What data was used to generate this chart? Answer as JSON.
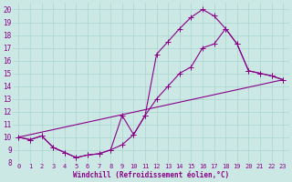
{
  "background_color": "#cce8e4",
  "line_color": "#880088",
  "xlabel": "Windchill (Refroidissement éolien,°C)",
  "xlim": [
    -0.5,
    23.5
  ],
  "ylim": [
    8,
    20.5
  ],
  "xticks": [
    0,
    1,
    2,
    3,
    4,
    5,
    6,
    7,
    8,
    9,
    10,
    11,
    12,
    13,
    14,
    15,
    16,
    17,
    18,
    19,
    20,
    21,
    22,
    23
  ],
  "yticks": [
    8,
    9,
    10,
    11,
    12,
    13,
    14,
    15,
    16,
    17,
    18,
    19,
    20
  ],
  "grid_color": "#aad4d0",
  "line1_x": [
    0,
    1,
    2,
    3,
    4,
    5,
    6,
    7,
    8,
    9,
    10,
    11,
    12,
    13,
    14,
    15,
    16,
    17,
    18,
    19,
    20,
    21,
    22,
    23
  ],
  "line1_y": [
    10,
    9.8,
    10.1,
    9.2,
    8.8,
    8.4,
    8.6,
    8.7,
    9.0,
    9.4,
    10.2,
    11.7,
    16.5,
    17.5,
    18.5,
    19.4,
    20.0,
    19.5,
    18.5,
    17.3,
    15.2,
    15.0,
    14.8,
    14.5
  ],
  "line2_x": [
    0,
    1,
    2,
    3,
    4,
    5,
    6,
    7,
    8,
    9,
    10,
    11,
    12,
    13,
    14,
    15,
    16,
    17,
    18,
    19,
    20,
    21,
    22,
    23
  ],
  "line2_y": [
    10,
    9.8,
    10.1,
    9.2,
    8.8,
    8.4,
    8.6,
    8.7,
    9.0,
    11.7,
    10.2,
    11.7,
    13.0,
    14.0,
    15.0,
    15.5,
    17.0,
    17.3,
    18.5,
    17.3,
    15.2,
    15.0,
    14.8,
    14.5
  ],
  "line3_x": [
    0,
    23
  ],
  "line3_y": [
    10,
    14.5
  ]
}
